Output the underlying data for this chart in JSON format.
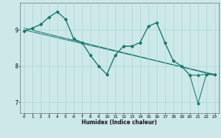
{
  "title": "",
  "xlabel": "Humidex (Indice chaleur)",
  "bg_color": "#cce8e8",
  "line_color": "#1a7a6e",
  "grid_color": "#aad4d4",
  "xlim": [
    -0.5,
    23.5
  ],
  "ylim": [
    6.7,
    9.75
  ],
  "yticks": [
    7,
    8,
    9
  ],
  "xticks": [
    0,
    1,
    2,
    3,
    4,
    5,
    6,
    7,
    8,
    9,
    10,
    11,
    12,
    13,
    14,
    15,
    16,
    17,
    18,
    19,
    20,
    21,
    22,
    23
  ],
  "line_main_x": [
    0,
    1,
    2,
    3,
    4,
    5,
    6,
    7,
    8,
    9,
    10,
    11,
    12,
    13,
    14,
    15,
    16,
    17,
    18,
    19,
    20,
    21,
    22,
    23
  ],
  "line_main_y": [
    8.97,
    9.05,
    9.15,
    9.35,
    9.5,
    9.3,
    8.75,
    8.65,
    8.3,
    8.0,
    7.77,
    8.3,
    8.55,
    8.55,
    8.65,
    9.1,
    9.2,
    8.65,
    8.15,
    8.0,
    7.75,
    6.97,
    7.77,
    7.77
  ],
  "line_upper_x": [
    0,
    1,
    2,
    3,
    4,
    5,
    6,
    7,
    8,
    9,
    10,
    11,
    12,
    13,
    14,
    15,
    16,
    17,
    18,
    19,
    20,
    21,
    22,
    23
  ],
  "line_upper_y": [
    8.97,
    9.05,
    9.15,
    9.35,
    9.5,
    9.3,
    8.75,
    8.65,
    8.3,
    8.0,
    7.77,
    8.3,
    8.55,
    8.55,
    8.65,
    9.1,
    9.2,
    8.65,
    8.15,
    8.0,
    7.75,
    7.75,
    7.77,
    7.77
  ],
  "trend1_x": [
    0,
    23
  ],
  "trend1_y": [
    9.05,
    7.75
  ],
  "trend2_x": [
    0,
    23
  ],
  "trend2_y": [
    9.0,
    7.77
  ]
}
